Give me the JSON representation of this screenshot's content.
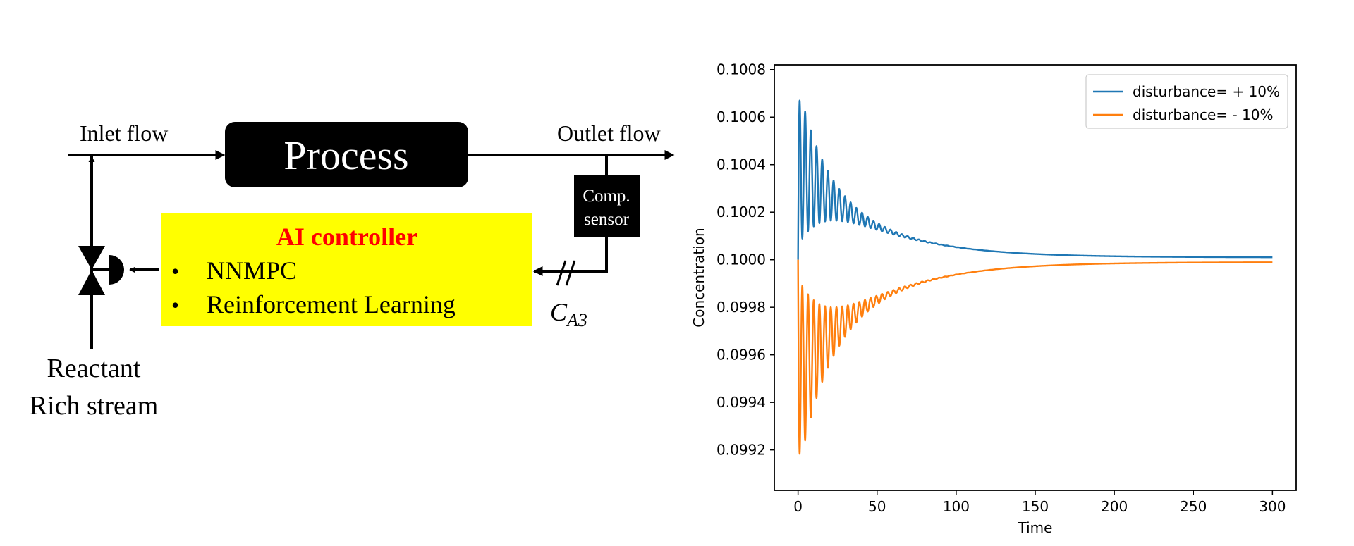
{
  "diagram": {
    "inlet_label": "Inlet flow",
    "outlet_label": "Outlet flow",
    "process_label": "Process",
    "sensor_line1": "Comp.",
    "sensor_line2": "sensor",
    "controller_title": "AI controller",
    "controller_items": [
      "NNMPC",
      "Reinforcement Learning"
    ],
    "bullet": "•",
    "signal_label_main": "C",
    "signal_label_sub": "A3",
    "reactant_line1": "Reactant",
    "reactant_line2": "Rich stream",
    "colors": {
      "controller_fill": "#ffff00",
      "controller_title": "#ff0000",
      "process_fill": "#000000",
      "line": "#000000"
    }
  },
  "chart_data": {
    "type": "line",
    "xlabel": "Time",
    "ylabel": "Concentration",
    "xlim": [
      -15,
      315
    ],
    "ylim": [
      0.09903,
      0.10082
    ],
    "xticks": [
      0,
      50,
      100,
      150,
      200,
      250,
      300
    ],
    "xtick_labels": [
      "0",
      "50",
      "100",
      "150",
      "200",
      "250",
      "300"
    ],
    "yticks": [
      0.0992,
      0.0994,
      0.0996,
      0.0998,
      0.1,
      0.1002,
      0.1004,
      0.1006,
      0.1008
    ],
    "ytick_labels": [
      "0.0992",
      "0.0994",
      "0.0996",
      "0.0998",
      "0.1000",
      "0.1002",
      "0.1004",
      "0.1006",
      "0.1008"
    ],
    "grid": false,
    "legend_position": "top-right",
    "setpoint": 0.1,
    "series": [
      {
        "name": "disturbance= + 10%",
        "color": "#1f77b4",
        "sign": 1,
        "peak_value": 0.10073,
        "final_value": 0.10001,
        "x_range": [
          0,
          300
        ],
        "oscillation_period": 3.6,
        "oscillation_decay_time": 16,
        "offset_decay_time": 45
      },
      {
        "name": "disturbance= - 10%",
        "color": "#ff7f0e",
        "sign": -1,
        "trough_value": 0.09911,
        "final_value": 0.09999,
        "x_range": [
          0,
          300
        ],
        "oscillation_period": 3.6,
        "oscillation_decay_time": 16,
        "offset_decay_time": 45
      }
    ]
  }
}
